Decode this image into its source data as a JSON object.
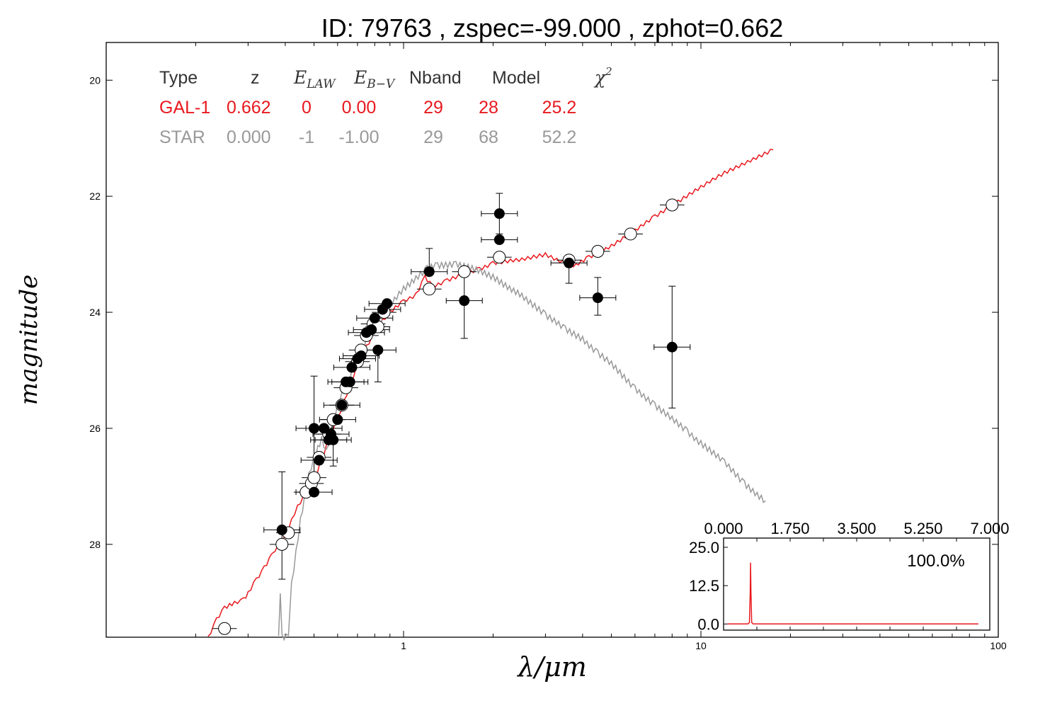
{
  "title": "ID:  79763 , zspec=-99.000 , zphot=0.662",
  "chart_data": {
    "type": "scatter",
    "title": "ID:  79763 , zspec=-99.000 , zphot=0.662",
    "xlabel": "λ/μm",
    "ylabel": "magnitude",
    "xscale": "log",
    "xlim": [
      0.1,
      100
    ],
    "ylim": [
      29.6,
      19.35
    ],
    "y_inverted": true,
    "grid": false,
    "x_ticks": [
      "1",
      "10",
      "100"
    ],
    "y_ticks": [
      "20",
      "22",
      "24",
      "26",
      "28"
    ],
    "fit_table": {
      "headers": [
        "Type",
        "z",
        "E_LAW",
        "E_B-V",
        "Nband",
        "Model",
        "χ2"
      ],
      "rows": [
        {
          "name": "GAL-1",
          "cells": [
            "GAL-1",
            "0.662",
            "0",
            "0.00",
            "29",
            "28",
            "25.2"
          ],
          "color": "#e8191e"
        },
        {
          "name": "STAR",
          "cells": [
            "STAR",
            "0.000",
            "-1",
            "-1.00",
            "29",
            "68",
            "52.2"
          ],
          "color": "#999999"
        }
      ]
    },
    "series": [
      {
        "kind": "line",
        "color": "#e8191e",
        "points": [
          [
            0.22,
            29.6
          ],
          [
            0.235,
            29.3
          ],
          [
            0.25,
            29.1
          ],
          [
            0.27,
            29.0
          ],
          [
            0.29,
            28.95
          ],
          [
            0.3,
            28.85
          ],
          [
            0.32,
            28.6
          ],
          [
            0.34,
            28.4
          ],
          [
            0.36,
            28.2
          ],
          [
            0.38,
            28.0
          ],
          [
            0.4,
            27.85
          ],
          [
            0.42,
            27.6
          ],
          [
            0.44,
            27.35
          ],
          [
            0.47,
            27.1
          ],
          [
            0.5,
            26.95
          ],
          [
            0.53,
            26.55
          ],
          [
            0.56,
            26.2
          ],
          [
            0.6,
            25.85
          ],
          [
            0.63,
            25.55
          ],
          [
            0.66,
            25.25
          ],
          [
            0.7,
            24.95
          ],
          [
            0.75,
            24.6
          ],
          [
            0.8,
            24.35
          ],
          [
            0.85,
            24.15
          ],
          [
            0.9,
            24.0
          ],
          [
            1.0,
            23.8
          ],
          [
            1.1,
            23.7
          ],
          [
            1.18,
            23.4
          ],
          [
            1.25,
            23.55
          ],
          [
            1.4,
            23.45
          ],
          [
            1.6,
            23.35
          ],
          [
            1.8,
            23.25
          ],
          [
            2.0,
            23.15
          ],
          [
            2.5,
            23.1
          ],
          [
            3.0,
            23.0
          ],
          [
            3.5,
            23.15
          ],
          [
            3.8,
            23.2
          ],
          [
            4.2,
            23.05
          ],
          [
            5.0,
            22.85
          ],
          [
            6.0,
            22.6
          ],
          [
            7.0,
            22.35
          ],
          [
            8.0,
            22.15
          ],
          [
            10.0,
            21.85
          ],
          [
            12.0,
            21.6
          ],
          [
            15.0,
            21.35
          ],
          [
            17.5,
            21.2
          ]
        ]
      },
      {
        "kind": "line",
        "color": "#999999",
        "points": [
          [
            0.38,
            29.6
          ],
          [
            0.385,
            28.9
          ],
          [
            0.39,
            29.6
          ],
          [
            0.41,
            29.6
          ],
          [
            0.42,
            28.7
          ],
          [
            0.45,
            27.6
          ],
          [
            0.48,
            26.8
          ],
          [
            0.5,
            26.5
          ],
          [
            0.53,
            26.2
          ],
          [
            0.55,
            26.4
          ],
          [
            0.58,
            25.9
          ],
          [
            0.6,
            25.6
          ],
          [
            0.65,
            25.2
          ],
          [
            0.7,
            24.8
          ],
          [
            0.75,
            24.5
          ],
          [
            0.8,
            24.3
          ],
          [
            0.85,
            24.1
          ],
          [
            0.9,
            23.9
          ],
          [
            1.0,
            23.6
          ],
          [
            1.1,
            23.4
          ],
          [
            1.2,
            23.25
          ],
          [
            1.3,
            23.2
          ],
          [
            1.5,
            23.15
          ],
          [
            1.7,
            23.25
          ],
          [
            2.0,
            23.4
          ],
          [
            2.5,
            23.7
          ],
          [
            3.0,
            24.05
          ],
          [
            3.5,
            24.3
          ],
          [
            4.0,
            24.45
          ],
          [
            4.5,
            24.7
          ],
          [
            5.0,
            24.9
          ],
          [
            6.0,
            25.3
          ],
          [
            7.0,
            25.6
          ],
          [
            8.0,
            25.85
          ],
          [
            9.0,
            26.05
          ],
          [
            10.0,
            26.25
          ],
          [
            12.0,
            26.6
          ],
          [
            14.0,
            26.95
          ],
          [
            16.5,
            27.25
          ]
        ]
      },
      {
        "kind": "points",
        "marker": "filled",
        "color": "#000000",
        "points": [
          [
            0.39,
            27.75,
            28.6,
            26.75
          ],
          [
            0.5,
            27.1,
            null,
            null
          ],
          [
            0.5,
            26.0,
            26.95,
            25.1
          ],
          [
            0.52,
            26.55,
            null,
            null
          ],
          [
            0.54,
            26.0,
            null,
            null
          ],
          [
            0.56,
            26.2,
            null,
            null
          ],
          [
            0.57,
            26.1,
            null,
            null
          ],
          [
            0.58,
            26.2,
            26.65,
            25.8
          ],
          [
            0.6,
            25.85,
            null,
            null
          ],
          [
            0.62,
            25.6,
            null,
            null
          ],
          [
            0.64,
            25.2,
            null,
            null
          ],
          [
            0.66,
            25.2,
            null,
            null
          ],
          [
            0.67,
            24.95,
            null,
            null
          ],
          [
            0.7,
            24.8,
            null,
            null
          ],
          [
            0.72,
            24.75,
            null,
            null
          ],
          [
            0.75,
            24.35,
            null,
            null
          ],
          [
            0.78,
            24.3,
            null,
            null
          ],
          [
            0.8,
            24.1,
            null,
            null
          ],
          [
            0.82,
            24.65,
            25.2,
            null
          ],
          [
            0.85,
            23.95,
            null,
            null
          ],
          [
            0.88,
            23.85,
            null,
            null
          ],
          [
            1.22,
            23.3,
            null,
            22.9
          ],
          [
            1.6,
            23.8,
            24.45,
            23.25
          ],
          [
            2.1,
            22.3,
            22.65,
            21.95
          ],
          [
            2.1,
            22.75,
            null,
            null
          ],
          [
            3.6,
            23.15,
            23.5,
            null
          ],
          [
            4.5,
            23.75,
            24.05,
            23.4
          ],
          [
            8.0,
            24.6,
            25.65,
            23.55
          ]
        ]
      },
      {
        "kind": "points",
        "marker": "open",
        "color": "#000000",
        "points": [
          [
            0.25,
            29.45
          ],
          [
            0.39,
            28.0
          ],
          [
            0.41,
            27.8
          ],
          [
            0.47,
            27.1
          ],
          [
            0.49,
            26.95
          ],
          [
            0.5,
            26.85
          ],
          [
            0.52,
            26.5
          ],
          [
            0.56,
            26.1
          ],
          [
            0.58,
            25.85
          ],
          [
            0.62,
            25.6
          ],
          [
            0.64,
            25.3
          ],
          [
            0.7,
            24.85
          ],
          [
            0.72,
            24.65
          ],
          [
            0.75,
            24.4
          ],
          [
            0.79,
            24.2
          ],
          [
            0.82,
            24.25
          ],
          [
            0.86,
            24.0
          ],
          [
            1.22,
            23.6
          ],
          [
            1.6,
            23.3
          ],
          [
            2.1,
            23.05
          ],
          [
            3.6,
            23.1
          ],
          [
            4.5,
            22.95
          ],
          [
            5.8,
            22.65
          ],
          [
            8.0,
            22.15
          ]
        ]
      }
    ],
    "inset": {
      "type": "line",
      "x_ticks": [
        "0.000",
        "1.750",
        "3.500",
        "5.250",
        "7.000"
      ],
      "y_ticks": [
        "25.0",
        "12.5",
        "0.0"
      ],
      "xlim": [
        0,
        7
      ],
      "ylim": [
        -2,
        28
      ],
      "label": "100.0%",
      "color": "#e8191e",
      "points": [
        [
          0.1,
          0.0
        ],
        [
          0.64,
          0.0
        ],
        [
          0.68,
          0.5
        ],
        [
          0.7,
          10.0
        ],
        [
          0.71,
          20.0
        ],
        [
          0.72,
          10.0
        ],
        [
          0.74,
          0.5
        ],
        [
          0.78,
          0.0
        ],
        [
          6.7,
          0.0
        ]
      ]
    }
  }
}
